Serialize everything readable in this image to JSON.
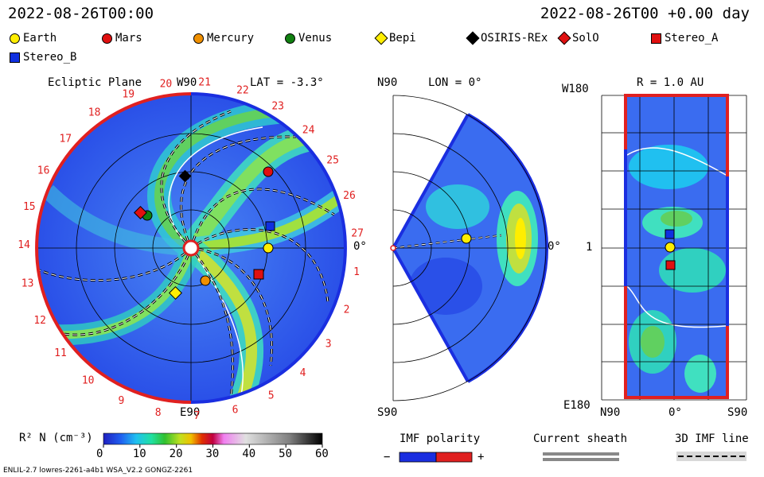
{
  "header": {
    "date_left": "2022-08-26T00:00",
    "date_right": "2022-08-26T00 +0.00 day"
  },
  "legend": [
    {
      "name": "Earth",
      "color": "#ffee00",
      "shape": "circle"
    },
    {
      "name": "Mars",
      "color": "#e01010",
      "shape": "circle"
    },
    {
      "name": "Mercury",
      "color": "#f09000",
      "shape": "circle"
    },
    {
      "name": "Venus",
      "color": "#108010",
      "shape": "circle"
    },
    {
      "name": "Bepi",
      "color": "#ffee00",
      "shape": "diamond"
    },
    {
      "name": "OSIRIS-REx",
      "color": "#000000",
      "shape": "diamond"
    },
    {
      "name": "SolO",
      "color": "#e01010",
      "shape": "diamond"
    },
    {
      "name": "Stereo_A",
      "color": "#e01010",
      "shape": "square"
    },
    {
      "name": "Stereo_B",
      "color": "#1030e0",
      "shape": "square"
    }
  ],
  "panel_ecliptic": {
    "title": "Ecliptic Plane",
    "top_label": "W90",
    "bottom_label": "E90",
    "right_label": "0°",
    "lat_label": "LAT = -3.3°",
    "carrington_ticks": [
      "1",
      "2",
      "3",
      "4",
      "5",
      "6",
      "7",
      "8",
      "9",
      "10",
      "11",
      "12",
      "13",
      "14",
      "15",
      "16",
      "17",
      "18",
      "19",
      "20",
      "21",
      "22",
      "23",
      "24",
      "25",
      "26",
      "27"
    ]
  },
  "panel_meridional": {
    "top_label": "N90",
    "bottom_label": "S90",
    "lon_label": "LON = 0°",
    "right_label": "0°"
  },
  "panel_sphere": {
    "r_label": "R = 1.0 AU",
    "top_left": "W180",
    "bottom_left": "E180",
    "mid_left": "1",
    "bottom_n": "N90",
    "bottom_mid": "0°",
    "bottom_s": "S90"
  },
  "colorbar": {
    "label": "R² N (cm⁻³)",
    "ticks": [
      "0",
      "10",
      "20",
      "30",
      "40",
      "50",
      "60"
    ]
  },
  "imf": {
    "label": "IMF polarity",
    "minus": "−",
    "plus": "+"
  },
  "sheath": {
    "label": "Current sheath"
  },
  "imf3d": {
    "label": "3D IMF line"
  },
  "footer": {
    "model": "ENLIL-2.7 lowres-2261-a4b1 WSA_V2.2 GONGZ-2261"
  },
  "colors": {
    "red": "#e02020",
    "blue": "#1a2ee0",
    "bg_blue": "#3a6cf0"
  }
}
